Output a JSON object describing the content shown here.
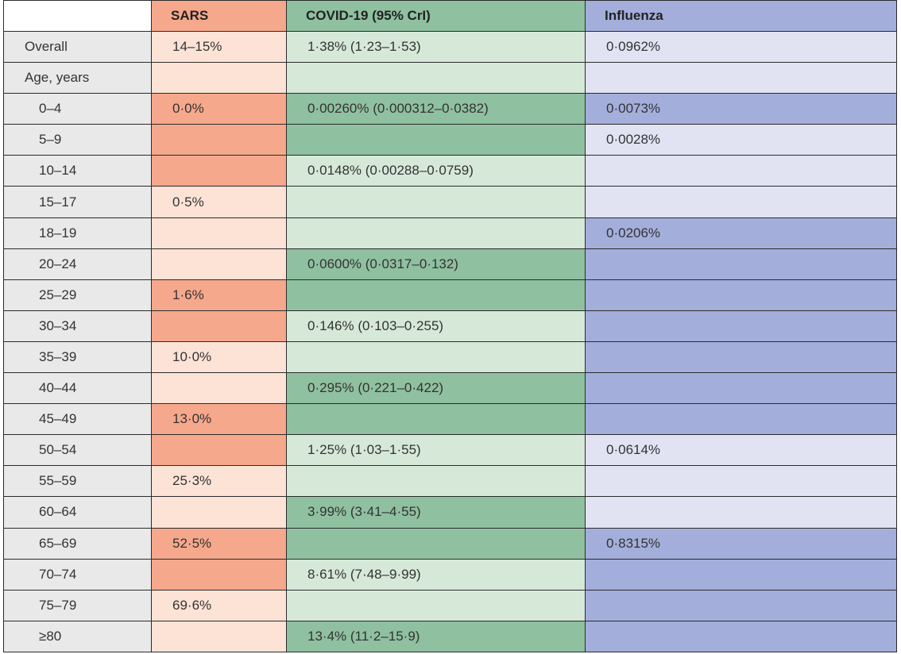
{
  "colors": {
    "label_bg": "#e9e9ea",
    "sars_light": "#fde3d6",
    "sars_dark": "#f6a88c",
    "covid_light": "#d6e9d9",
    "covid_dark": "#8fc0a0",
    "flu_light": "#e1e3f3",
    "flu_dark": "#a3aedb"
  },
  "header": [
    "",
    "SARS",
    "COVID-19 (95% CrI)",
    "Influenza"
  ],
  "rows": [
    {
      "label": "Overall",
      "sars": "14–15%",
      "covid": "1·38% (1·23–1·53)",
      "flu": "0·0962%",
      "shade": [
        "light",
        "light",
        "light"
      ]
    },
    {
      "label": "Age, years",
      "sars": "",
      "covid": "",
      "flu": "",
      "shade": [
        "light",
        "light",
        "light"
      ]
    },
    {
      "label": "0–4",
      "sars": "0·0%",
      "covid": "0·00260% (0·000312–0·0382)",
      "flu": "0·0073%",
      "shade": [
        "dark",
        "dark",
        "dark"
      ]
    },
    {
      "label": "5–9",
      "sars": "",
      "covid": "",
      "flu": "0·0028%",
      "shade": [
        "dark",
        "dark",
        "light"
      ]
    },
    {
      "label": "10–14",
      "sars": "",
      "covid": "0·0148% (0·00288–0·0759)",
      "flu": "",
      "shade": [
        "dark",
        "light",
        "light"
      ]
    },
    {
      "label": "15–17",
      "sars": "0·5%",
      "covid": "",
      "flu": "",
      "shade": [
        "light",
        "light",
        "light"
      ]
    },
    {
      "label": "18–19",
      "sars": "",
      "covid": "",
      "flu": "0·0206%",
      "shade": [
        "light",
        "light",
        "dark"
      ]
    },
    {
      "label": "20–24",
      "sars": "",
      "covid": "0·0600% (0·0317–0·132)",
      "flu": "",
      "shade": [
        "light",
        "dark",
        "dark"
      ]
    },
    {
      "label": "25–29",
      "sars": "1·6%",
      "covid": "",
      "flu": "",
      "shade": [
        "dark",
        "dark",
        "dark"
      ]
    },
    {
      "label": "30–34",
      "sars": "",
      "covid": "0·146% (0·103–0·255)",
      "flu": "",
      "shade": [
        "dark",
        "light",
        "dark"
      ]
    },
    {
      "label": "35–39",
      "sars": "10·0%",
      "covid": "",
      "flu": "",
      "shade": [
        "light",
        "light",
        "dark"
      ]
    },
    {
      "label": "40–44",
      "sars": "",
      "covid": "0·295% (0·221–0·422)",
      "flu": "",
      "shade": [
        "light",
        "dark",
        "dark"
      ]
    },
    {
      "label": "45–49",
      "sars": "13·0%",
      "covid": "",
      "flu": "",
      "shade": [
        "dark",
        "dark",
        "dark"
      ]
    },
    {
      "label": "50–54",
      "sars": "",
      "covid": "1·25% (1·03–1·55)",
      "flu": "0·0614%",
      "shade": [
        "dark",
        "light",
        "light"
      ]
    },
    {
      "label": "55–59",
      "sars": "25·3%",
      "covid": "",
      "flu": "",
      "shade": [
        "light",
        "light",
        "light"
      ]
    },
    {
      "label": "60–64",
      "sars": "",
      "covid": "3·99% (3·41–4·55)",
      "flu": "",
      "shade": [
        "light",
        "dark",
        "light"
      ]
    },
    {
      "label": "65–69",
      "sars": "52·5%",
      "covid": "",
      "flu": "0·8315%",
      "shade": [
        "dark",
        "dark",
        "dark"
      ]
    },
    {
      "label": "70–74",
      "sars": "",
      "covid": "8·61% (7·48–9·99)",
      "flu": "",
      "shade": [
        "dark",
        "light",
        "dark"
      ]
    },
    {
      "label": "75–79",
      "sars": "69·6%",
      "covid": "",
      "flu": "",
      "shade": [
        "light",
        "light",
        "dark"
      ]
    },
    {
      "label": "≥80",
      "sars": "",
      "covid": "13·4% (11·2–15·9)",
      "flu": "",
      "shade": [
        "light",
        "dark",
        "dark"
      ]
    }
  ]
}
